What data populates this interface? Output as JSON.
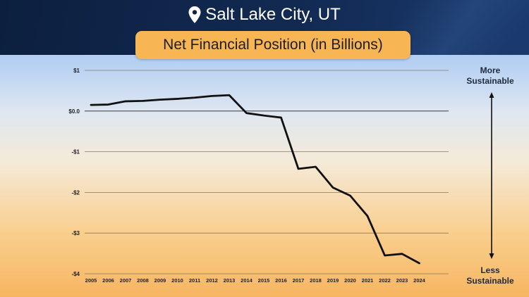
{
  "header": {
    "location_icon": "map-pin-icon",
    "city": "Salt Lake City, UT",
    "subtitle": "Net Financial Position (in Billions)"
  },
  "side": {
    "top_label_line1": "More",
    "top_label_line2": "Sustainable",
    "bottom_label_line1": "Less",
    "bottom_label_line2": "Sustainable",
    "arrow_icon": "double-arrow-vertical-icon"
  },
  "colors": {
    "header_bg": "#0c1f3f",
    "pill_bg": "#f8b554",
    "line": "#111111",
    "grid": "#8a7a5c"
  },
  "chart_data": {
    "type": "line",
    "title": "Net Financial Position (in Billions)",
    "xlabel": "",
    "ylabel": "",
    "ylim": [
      -4,
      1
    ],
    "yticks": [
      1,
      0,
      -1,
      -2,
      -3,
      -4
    ],
    "ytick_labels": [
      "$1",
      "$0.0",
      "-$1",
      "-$2",
      "-$3",
      "-$4"
    ],
    "grid": true,
    "legend": "none",
    "x": [
      "2005",
      "2006",
      "2007",
      "2008",
      "2009",
      "2010",
      "2011",
      "2012",
      "2013",
      "2014",
      "2015",
      "2016",
      "2017",
      "2018",
      "2019",
      "2020",
      "2021",
      "2022",
      "2023",
      "2024"
    ],
    "series": [
      {
        "values": [
          0.15,
          0.16,
          0.24,
          0.25,
          0.28,
          0.3,
          0.33,
          0.37,
          0.39,
          -0.05,
          -0.11,
          -0.16,
          -1.42,
          -1.37,
          -1.88,
          -2.08,
          -2.58,
          -3.55,
          -3.51,
          -3.74
        ]
      }
    ]
  }
}
